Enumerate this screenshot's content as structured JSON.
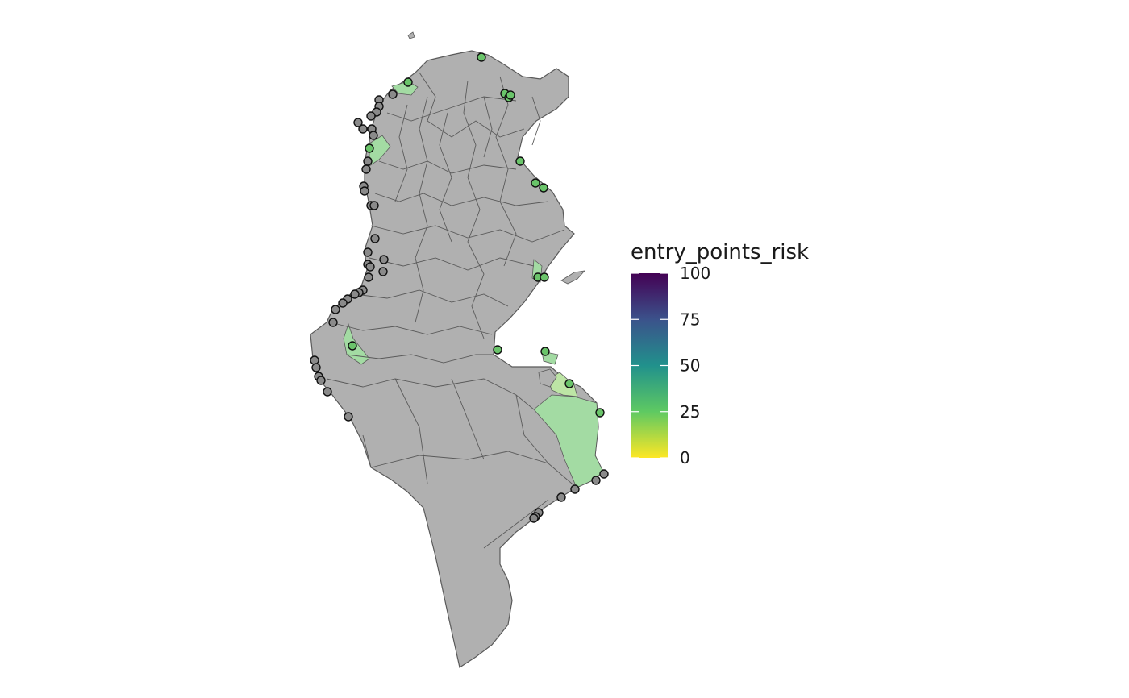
{
  "legend": {
    "title": "entry_points_risk",
    "scale": "viridis (reversed)",
    "min": 0,
    "max": 100,
    "ticks": [
      {
        "value": 100,
        "label": "100"
      },
      {
        "value": 75,
        "label": "75"
      },
      {
        "value": 50,
        "label": "50"
      },
      {
        "value": 25,
        "label": "25"
      },
      {
        "value": 0,
        "label": "0"
      }
    ],
    "gradient_colors": [
      "#fde725",
      "#5ec962",
      "#21918c",
      "#3b528b",
      "#440154"
    ]
  },
  "colors": {
    "no_data_fill": "#b0b0b0",
    "boundary": "#5a5a5a",
    "low_risk_fill": "#a3dba3",
    "point_no_data": "#8a8a8a",
    "point_risk": "#6ac46a",
    "point_stroke": "#111111"
  },
  "entry_points": {
    "risk_scored_count": 16,
    "no_data_count": 42
  }
}
